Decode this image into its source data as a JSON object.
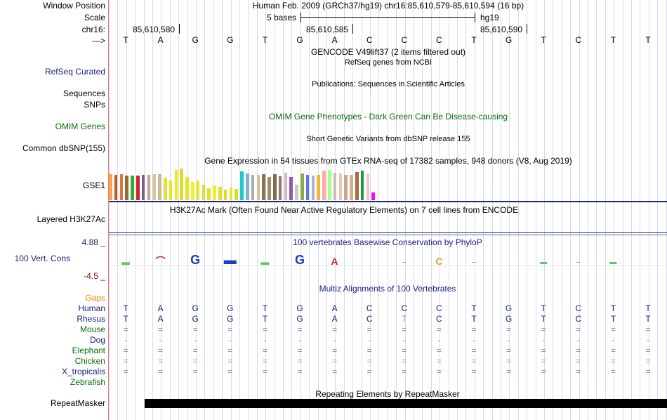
{
  "labels": {
    "window_position": "Window Position",
    "scale": "Scale",
    "chrom": "chr16:",
    "strand": "--->",
    "refseq": "RefSeq Curated",
    "sequences": "Sequences",
    "snps": "SNPs",
    "omim": "OMIM Genes",
    "dbsnp": "Common dbSNP(155)",
    "gse1": "GSE1",
    "h3k27ac": "Layered H3K27Ac",
    "cons_max": "4.88 _",
    "cons_label": "100 Vert. Cons",
    "cons_min": "-4.5 _",
    "gaps": "Gaps",
    "species": [
      "Human",
      "Rhesus",
      "Mouse",
      "Dog",
      "Elephant",
      "Chicken",
      "X_tropicalis",
      "Zebrafish"
    ],
    "repeatmasker": "RepeatMasker"
  },
  "header": {
    "position": "Human Feb. 2009 (GRCh37/hg19)   chr16:85,610,579-85,610,594 (16 bp)",
    "scale_text": "5 bases",
    "assembly": "hg19",
    "coords": [
      "85,610,580",
      "85,610,585",
      "85,610,590"
    ]
  },
  "sequence": [
    "T",
    "A",
    "G",
    "G",
    "T",
    "G",
    "A",
    "C",
    "C",
    "C",
    "T",
    "G",
    "T",
    "C",
    "T",
    "T"
  ],
  "tracks": {
    "gencode": "GENCODE V49lift37 (2 items filtered out)",
    "refseq": "RefSeq genes from NCBI",
    "publications": "Publications: Sequences in Scientific Articles",
    "omim": "OMIM Gene Phenotypes - Dark Green Can Be Disease-causing",
    "dbsnp": "Short Genetic Variants from dbSNP release 155",
    "gtex": "Gene Expression in 54 tissues from GTEx RNA-seq of 17382 samples, 948 donors (V8, Aug 2019)",
    "h3k27ac": "H3K27Ac Mark (Often Found Near Active Regulatory Elements) on 7 cell lines from ENCODE",
    "phylop": "100 vertebrates Basewise Conservation by PhyloP",
    "multiz": "Multiz Alignments of 100 Vertebrates",
    "repeat": "Repeating Elements by RepeatMasker"
  },
  "alignment": {
    "human": [
      "T",
      "A",
      "G",
      "G",
      "T",
      "G",
      "A",
      "C",
      "C",
      "C",
      "T",
      "G",
      "T",
      "C",
      "T",
      "T"
    ],
    "rhesus": [
      "T",
      "A",
      "G",
      "G",
      "T",
      "G",
      "A",
      "C",
      "T",
      "C",
      "T",
      "G",
      "T",
      "C",
      "T",
      "T"
    ],
    "mouse": [
      "=",
      "=",
      "=",
      "=",
      "=",
      "=",
      "=",
      "=",
      "=",
      "=",
      "=",
      "=",
      "=",
      "=",
      "=",
      "="
    ],
    "dog": [
      "-",
      "-",
      "-",
      "-",
      "-",
      "-",
      "-",
      "-",
      "-",
      "-",
      "-",
      "-",
      "-",
      "-",
      "-",
      "-"
    ],
    "elephant": [
      "=",
      "=",
      "=",
      "=",
      "=",
      "=",
      "=",
      "=",
      "=",
      "=",
      "=",
      "=",
      "=",
      "=",
      "=",
      "="
    ],
    "chicken": [
      "=",
      "=",
      "=",
      "=",
      "=",
      "=",
      "=",
      "=",
      "=",
      "=",
      "=",
      "=",
      "=",
      "=",
      "=",
      "="
    ],
    "x_tropicalis": [
      "=",
      "=",
      "=",
      "=",
      "=",
      "=",
      "=",
      "=",
      "=",
      "=",
      "=",
      "=",
      "=",
      "=",
      "=",
      "="
    ]
  },
  "gtex_colors": [
    "#f5a54a",
    "#b85c2b",
    "#e8733a",
    "#8f6b3e",
    "#3aaa35",
    "#c92828",
    "#7a5a8c",
    "#c4a28d",
    "#d8c3a5",
    "#c8ba9a",
    "#e0e040",
    "#e6e620",
    "#eaea22",
    "#dcdc2a",
    "#e4e42c",
    "#f0f030",
    "#e8e832",
    "#dede33",
    "#e2e230",
    "#eeee2e",
    "#e0e028",
    "#dcdc2a",
    "#e6e630",
    "#d8d82e",
    "#1ec8c8",
    "#7fb4d6",
    "#a9a9a9",
    "#d4c09c",
    "#8b7355",
    "#a68a64",
    "#7d6a50",
    "#8c7a62",
    "#d8b4c8",
    "#8e5ba8",
    "#c8c8c8",
    "#8ba84a",
    "#5a7adc",
    "#b0b0e0",
    "#f0b83c",
    "#ffaaaa",
    "#aaff77",
    "#c0c0c0",
    "#e8c8a8",
    "#c8a890",
    "#d4b08c",
    "#a86c3c",
    "#1a9a4a",
    "#e6c8c8",
    "#ff00ff"
  ],
  "gtex_values": [
    0.78,
    0.74,
    0.78,
    0.72,
    0.72,
    0.72,
    0.75,
    0.75,
    0.78,
    0.78,
    0.66,
    0.58,
    0.9,
    0.93,
    0.68,
    0.55,
    0.58,
    0.46,
    0.36,
    0.44,
    0.4,
    0.32,
    0.38,
    0.34,
    0.86,
    0.8,
    0.76,
    0.76,
    0.78,
    0.68,
    0.78,
    0.7,
    0.82,
    0.68,
    0.46,
    0.8,
    0.75,
    0.72,
    0.74,
    0.88,
    0.9,
    0.82,
    0.8,
    0.74,
    0.76,
    0.84,
    0.88,
    0.8,
    0.22
  ]
}
